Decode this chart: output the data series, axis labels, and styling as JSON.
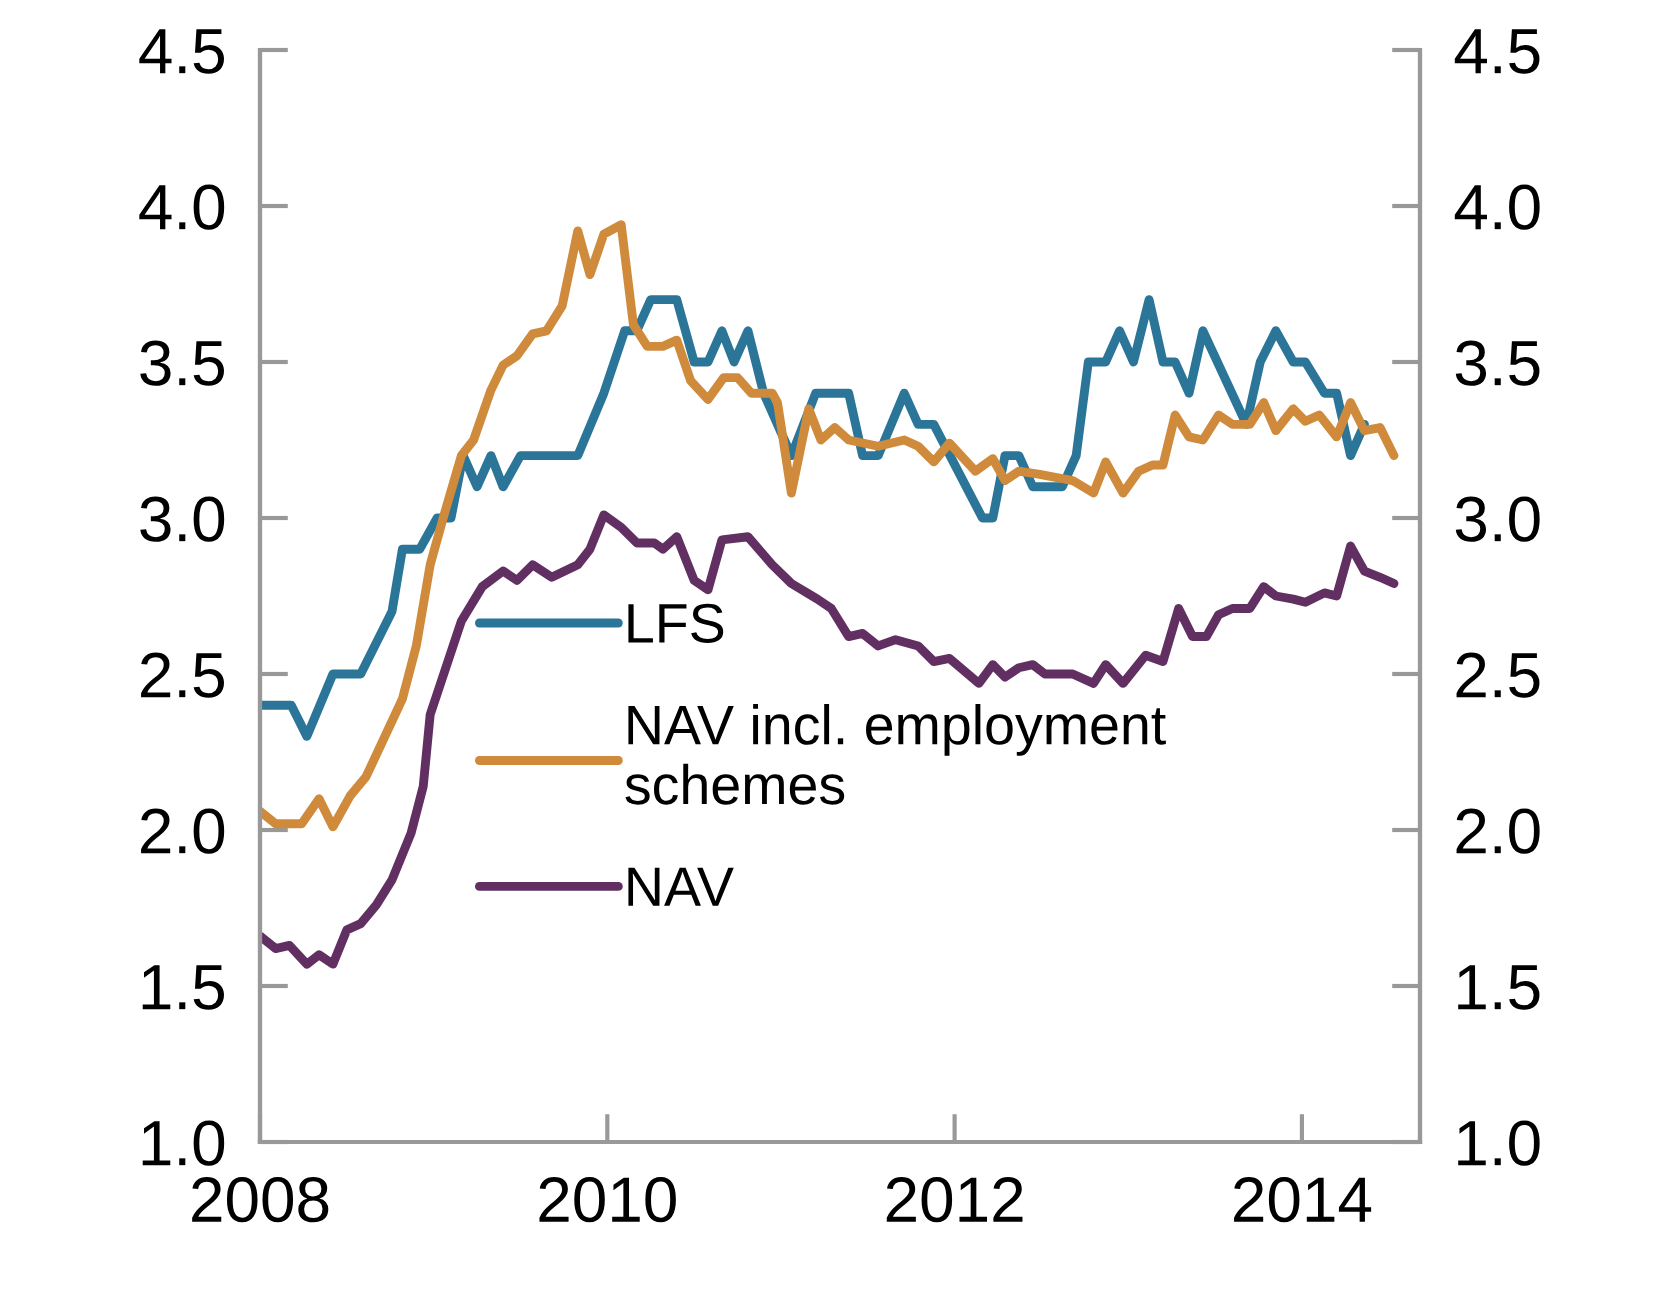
{
  "chart_data": {
    "type": "line",
    "xlim": [
      2008,
      2014.68
    ],
    "xticks": [
      2008,
      2010,
      2012,
      2014
    ],
    "ylim": [
      1.0,
      4.5
    ],
    "yticks": [
      {
        "value": 1.0,
        "label": "1.0"
      },
      {
        "value": 1.5,
        "label": "1.5"
      },
      {
        "value": 2.0,
        "label": "2.0"
      },
      {
        "value": 2.5,
        "label": "2.5"
      },
      {
        "value": 3.0,
        "label": "3.0"
      },
      {
        "value": 3.5,
        "label": "3.5"
      },
      {
        "value": 4.0,
        "label": "4.0"
      },
      {
        "value": 4.5,
        "label": "4.5"
      }
    ],
    "y2lim": [
      1.0,
      4.5
    ],
    "y2ticks": [
      {
        "value": 1.0,
        "label": "1.0"
      },
      {
        "value": 1.5,
        "label": "1.5"
      },
      {
        "value": 2.0,
        "label": "2.0"
      },
      {
        "value": 2.5,
        "label": "2.5"
      },
      {
        "value": 3.0,
        "label": "3.0"
      },
      {
        "value": 3.5,
        "label": "3.5"
      },
      {
        "value": 4.0,
        "label": "4.0"
      },
      {
        "value": 4.5,
        "label": "4.5"
      }
    ],
    "grid": false,
    "legend": "center left",
    "marker": "none",
    "line_style": "solid",
    "series": [
      {
        "name": "LFS",
        "color": "#2a7598",
        "x": [
          2008.0,
          2008.18,
          2008.27,
          2008.42,
          2008.58,
          2008.76,
          2008.82,
          2008.92,
          2009.02,
          2009.1,
          2009.17,
          2009.25,
          2009.33,
          2009.4,
          2009.5,
          2009.83,
          2009.98,
          2010.1,
          2010.17,
          2010.25,
          2010.4,
          2010.5,
          2010.58,
          2010.66,
          2010.73,
          2010.81,
          2010.9,
          2010.98,
          2011.06,
          2011.2,
          2011.39,
          2011.47,
          2011.56,
          2011.71,
          2011.79,
          2011.88,
          2012.16,
          2012.22,
          2012.29,
          2012.37,
          2012.45,
          2012.62,
          2012.7,
          2012.77,
          2012.87,
          2012.95,
          2013.03,
          2013.12,
          2013.2,
          2013.27,
          2013.35,
          2013.43,
          2013.68,
          2013.76,
          2013.85,
          2013.95,
          2014.02,
          2014.13,
          2014.2,
          2014.28,
          2014.36
        ],
        "values": [
          2.4,
          2.4,
          2.3,
          2.5,
          2.5,
          2.7,
          2.9,
          2.9,
          3.0,
          3.0,
          3.2,
          3.1,
          3.2,
          3.1,
          3.2,
          3.2,
          3.4,
          3.6,
          3.6,
          3.7,
          3.7,
          3.5,
          3.5,
          3.6,
          3.5,
          3.6,
          3.4,
          3.3,
          3.2,
          3.4,
          3.4,
          3.2,
          3.2,
          3.4,
          3.3,
          3.3,
          3.0,
          3.0,
          3.2,
          3.2,
          3.1,
          3.1,
          3.2,
          3.5,
          3.5,
          3.6,
          3.5,
          3.7,
          3.5,
          3.5,
          3.4,
          3.6,
          3.3,
          3.5,
          3.6,
          3.5,
          3.5,
          3.4,
          3.4,
          3.2,
          3.3
        ]
      },
      {
        "name": "NAV incl. employment\nschemes",
        "color": "#d08a3c",
        "x": [
          2008.0,
          2008.09,
          2008.24,
          2008.34,
          2008.42,
          2008.52,
          2008.61,
          2008.82,
          2008.9,
          2008.98,
          2009.06,
          2009.16,
          2009.23,
          2009.33,
          2009.4,
          2009.48,
          2009.57,
          2009.65,
          2009.74,
          2009.83,
          2009.9,
          2009.98,
          2010.08,
          2010.15,
          2010.23,
          2010.32,
          2010.4,
          2010.48,
          2010.58,
          2010.67,
          2010.75,
          2010.83,
          2010.95,
          2010.98,
          2011.06,
          2011.16,
          2011.23,
          2011.31,
          2011.39,
          2011.56,
          2011.71,
          2011.79,
          2011.88,
          2011.97,
          2012.12,
          2012.22,
          2012.29,
          2012.37,
          2012.49,
          2012.68,
          2012.8,
          2012.87,
          2012.97,
          2013.06,
          2013.14,
          2013.2,
          2013.27,
          2013.35,
          2013.43,
          2013.52,
          2013.6,
          2013.7,
          2013.78,
          2013.85,
          2013.95,
          2014.02,
          2014.1,
          2014.2,
          2014.28,
          2014.36,
          2014.45,
          2014.53
        ],
        "values": [
          2.06,
          2.02,
          2.02,
          2.1,
          2.01,
          2.11,
          2.17,
          2.42,
          2.59,
          2.85,
          3.01,
          3.2,
          3.25,
          3.41,
          3.49,
          3.52,
          3.59,
          3.6,
          3.68,
          3.92,
          3.78,
          3.91,
          3.94,
          3.62,
          3.55,
          3.55,
          3.57,
          3.44,
          3.38,
          3.45,
          3.45,
          3.4,
          3.4,
          3.37,
          3.08,
          3.35,
          3.25,
          3.29,
          3.25,
          3.23,
          3.25,
          3.23,
          3.18,
          3.24,
          3.15,
          3.19,
          3.12,
          3.15,
          3.14,
          3.12,
          3.08,
          3.18,
          3.08,
          3.15,
          3.17,
          3.17,
          3.33,
          3.26,
          3.25,
          3.33,
          3.3,
          3.3,
          3.37,
          3.28,
          3.35,
          3.31,
          3.33,
          3.26,
          3.37,
          3.28,
          3.29,
          3.2
        ]
      },
      {
        "name": "NAV",
        "color": "#622f63",
        "x": [
          2008.0,
          2008.09,
          2008.17,
          2008.27,
          2008.34,
          2008.42,
          2008.5,
          2008.58,
          2008.67,
          2008.76,
          2008.87,
          2008.94,
          2008.98,
          2009.16,
          2009.28,
          2009.4,
          2009.48,
          2009.57,
          2009.68,
          2009.83,
          2009.9,
          2009.98,
          2010.08,
          2010.17,
          2010.27,
          2010.32,
          2010.4,
          2010.5,
          2010.58,
          2010.66,
          2010.81,
          2010.95,
          2011.06,
          2011.21,
          2011.29,
          2011.39,
          2011.47,
          2011.56,
          2011.66,
          2011.79,
          2011.88,
          2011.97,
          2012.14,
          2012.22,
          2012.29,
          2012.37,
          2012.45,
          2012.52,
          2012.68,
          2012.8,
          2012.87,
          2012.97,
          2013.1,
          2013.2,
          2013.29,
          2013.37,
          2013.45,
          2013.52,
          2013.6,
          2013.7,
          2013.78,
          2013.85,
          2013.95,
          2014.02,
          2014.13,
          2014.2,
          2014.28,
          2014.36,
          2014.45,
          2014.53
        ],
        "values": [
          1.66,
          1.62,
          1.63,
          1.57,
          1.6,
          1.57,
          1.68,
          1.7,
          1.76,
          1.84,
          1.99,
          2.14,
          2.37,
          2.67,
          2.78,
          2.83,
          2.8,
          2.85,
          2.81,
          2.85,
          2.9,
          3.01,
          2.97,
          2.92,
          2.92,
          2.9,
          2.94,
          2.8,
          2.77,
          2.93,
          2.94,
          2.85,
          2.79,
          2.74,
          2.71,
          2.62,
          2.63,
          2.59,
          2.61,
          2.59,
          2.54,
          2.55,
          2.47,
          2.53,
          2.49,
          2.52,
          2.53,
          2.5,
          2.5,
          2.47,
          2.53,
          2.47,
          2.56,
          2.54,
          2.71,
          2.62,
          2.62,
          2.69,
          2.71,
          2.71,
          2.78,
          2.75,
          2.74,
          2.73,
          2.76,
          2.75,
          2.91,
          2.83,
          2.81,
          2.79
        ]
      }
    ]
  }
}
